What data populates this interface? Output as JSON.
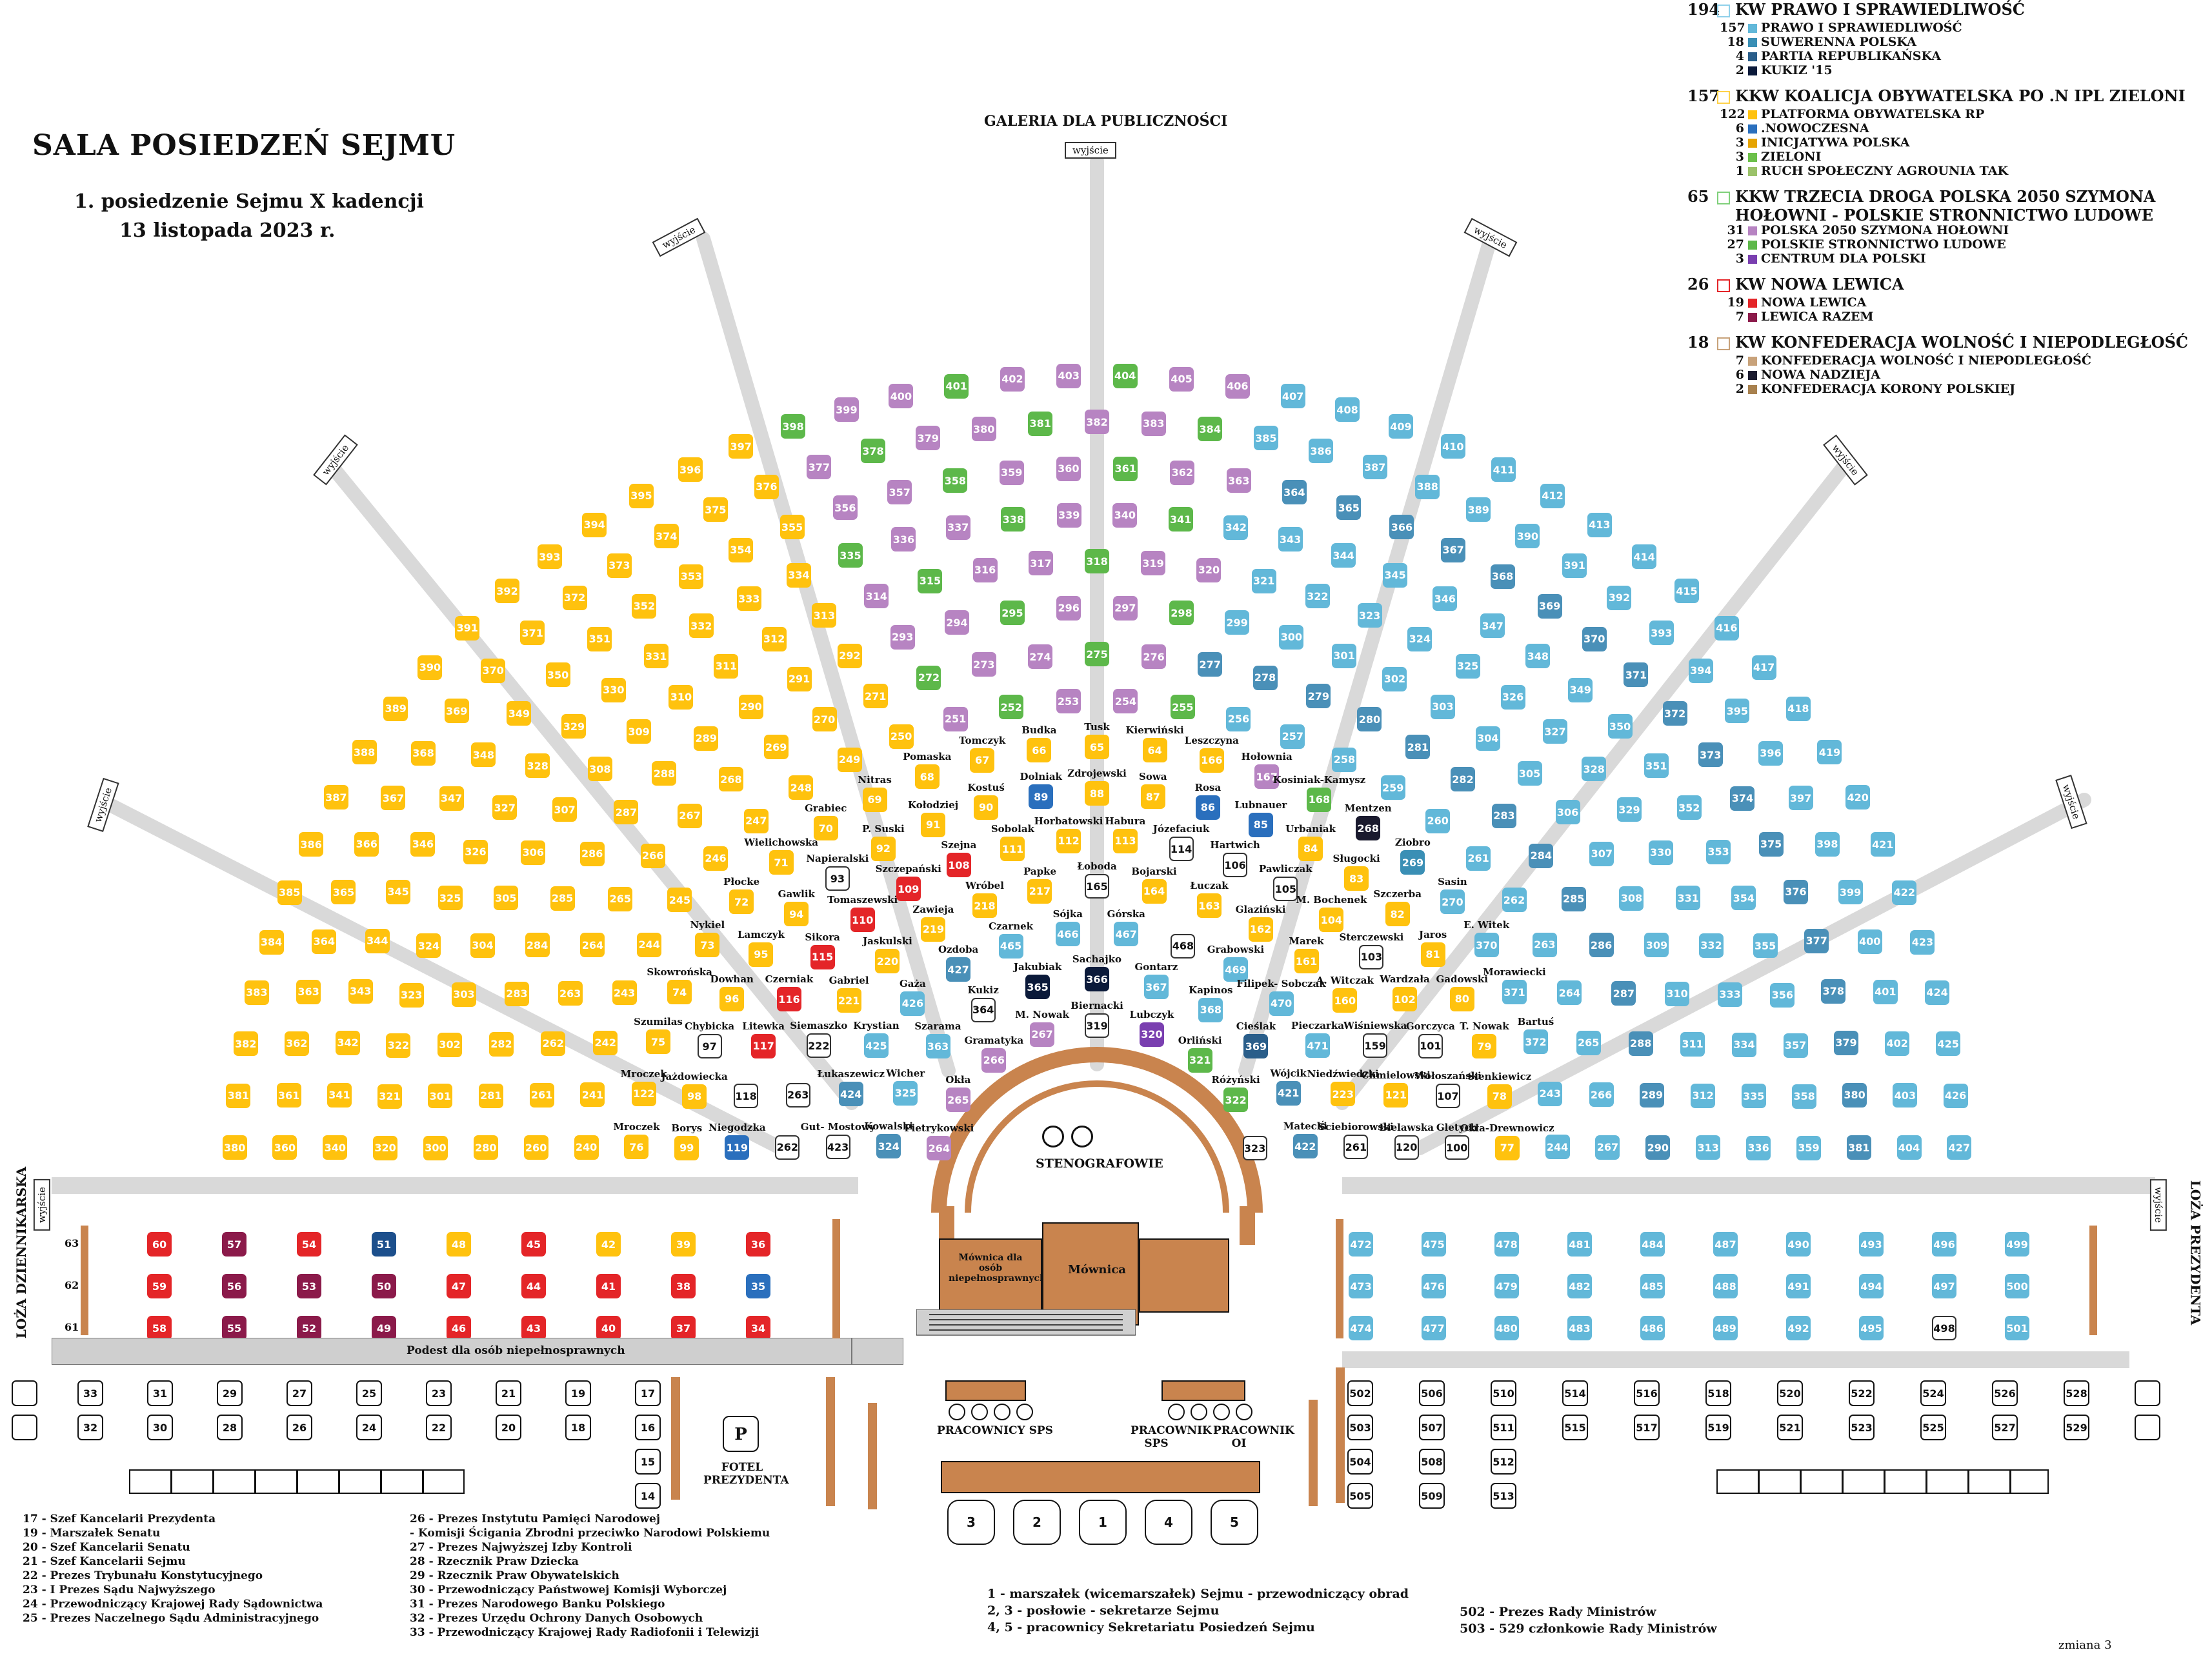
{
  "header": {
    "title": "SALA  POSIEDZEŃ SEJMU",
    "subtitle": "1. posiedzenie Sejmu X kadencji",
    "date": "13 listopada 2023 r.",
    "gallery": "GALERIA DLA PUBLICZNOŚCI",
    "exit": "wyjście",
    "stenographers": "STENOGRAFOWIE",
    "rostrum": "Mównica",
    "rostrum_disabled": "Mównica dla osób niepełnosprawnych",
    "podium": "Podest dla osób niepełnosprawnych",
    "loza_dz": "LOŻA DZIENNIKARSKA",
    "loza_prez": "LOŻA PREZYDENTA",
    "fotel": "FOTEL PREZYDENTA",
    "fotel_letter": "P",
    "pracownicy_sps": "PRACOWNICY  SPS",
    "pracownik_sps": "PRACOWNIK SPS",
    "pracownik_oi": "PRACOWNIK OI",
    "zmiana": "zmiana 3"
  },
  "colors": {
    "pis": "#ffc20e",
    "ko": "#f5b800",
    "td": "#6cc04a",
    "lewica": "#e42528",
    "konf": "#1c4f8c"
  },
  "legend": [
    {
      "total": "194",
      "color": "#8fd0ea",
      "label": "KW PRAWO I SPRAWIEDLIWOŚĆ",
      "items": [
        {
          "n": "157",
          "color": "#62b8d9",
          "label": "PRAWO I SPRAWIEDLIWOŚĆ"
        },
        {
          "n": "18",
          "color": "#3a8fb5",
          "label": "SUWERENNA POLSKA"
        },
        {
          "n": "4",
          "color": "#2a5e8a",
          "label": "PARTIA REPUBLIKAŃSKA"
        },
        {
          "n": "2",
          "color": "#0b1a3a",
          "label": "KUKIZ '15"
        }
      ]
    },
    {
      "total": "157",
      "color": "#ffd24a",
      "label": "KKW KOALICJA OBYWATELSKA PO .N IPL ZIELONI",
      "items": [
        {
          "n": "122",
          "color": "#ffc20e",
          "label": "PLATFORMA OBYWATELSKA RP"
        },
        {
          "n": "6",
          "color": "#2a6fbd",
          "label": ".NOWOCZESNA"
        },
        {
          "n": "3",
          "color": "#e6a400",
          "label": "INICJATYWA POLSKA"
        },
        {
          "n": "3",
          "color": "#6cc04a",
          "label": "ZIELONI"
        },
        {
          "n": "1",
          "color": "#9bc26a",
          "label": "RUCH SPOŁECZNY AGROUNIA TAK"
        }
      ]
    },
    {
      "total": "65",
      "color": "#7fd07a",
      "label": "KKW TRZECIA DROGA POLSKA 2050 SZYMONA HOŁOWNI - POLSKIE STRONNICTWO LUDOWE",
      "items": [
        {
          "n": "31",
          "color": "#b784c2",
          "label": "POLSKA 2050 SZYMONA HOŁOWNI"
        },
        {
          "n": "27",
          "color": "#5db84a",
          "label": "POLSKIE STRONNICTWO LUDOWE"
        },
        {
          "n": "3",
          "color": "#7a3fb0",
          "label": "CENTRUM DLA POLSKI"
        }
      ]
    },
    {
      "total": "26",
      "color": "#e42528",
      "label": "KW NOWA LEWICA",
      "items": [
        {
          "n": "19",
          "color": "#e42528",
          "label": "NOWA LEWICA"
        },
        {
          "n": "7",
          "color": "#8b1a4a",
          "label": "LEWICA RAZEM"
        }
      ]
    },
    {
      "total": "18",
      "color": "#c8a27a",
      "label": "KW KONFEDERACJA WOLNOŚĆ I NIEPODLEGŁOŚĆ",
      "items": [
        {
          "n": "7",
          "color": "#c8a27a",
          "label": "KONFEDERACJA WOLNOŚĆ I NIEPODLEGŁOŚĆ"
        },
        {
          "n": "6",
          "color": "#1a1a2e",
          "label": "NOWA NADZIEJA"
        },
        {
          "n": "2",
          "color": "#a8814e",
          "label": "KONFEDERACJA KORONY POLSKIEJ"
        }
      ]
    }
  ],
  "footnotes_left": [
    "17 - Szef Kancelarii Prezydenta",
    "19 - Marszałek Senatu",
    "20 - Szef Kancelarii Senatu",
    "21 - Szef Kancelarii Sejmu",
    "22 - Prezes Trybunału Konstytucyjnego",
    "23 - I Prezes Sądu Najwyższego",
    "24 - Przewodniczący Krajowej Rady Sądownictwa",
    "25 - Prezes Naczelnego Sądu Administracyjnego"
  ],
  "footnotes_mid": [
    "26 - Prezes Instytutu Pamięci Narodowej",
    "  - Komisji Ścigania Zbrodni przeciwko Narodowi Polskiemu",
    "27 - Prezes Najwyższej Izby Kontroli",
    "28 - Rzecznik Praw Dziecka",
    "29 - Rzecznik Praw Obywatelskich",
    "30 - Przewodniczący Państwowej Komisji Wyborczej",
    "31 - Prezes Narodowego Banku Polskiego",
    "32 - Prezes Urzędu Ochrony Danych Osobowych",
    "33 - Przewodniczący Krajowej Rady Radiofonii i Telewizji"
  ],
  "footnotes_right": [
    "1      - marszałek (wicemarszałek) Sejmu - przewodniczący obrad",
    "2, 3 - posłowie - sekretarze Sejmu",
    "4, 5 - pracownicy Sekretariatu Posiedzeń Sejmu"
  ],
  "footnotes_right2": [
    "502 - Prezes Rady Ministrów",
    "503 - 529 członkowie Rady Ministrów"
  ],
  "seats": [
    {
      "n": "264",
      "name": "Pietrykowski",
      "c": "#b784c2"
    },
    {
      "n": "265",
      "name": "Okła",
      "c": "#b784c2"
    },
    {
      "n": "266",
      "name": "Gramatyka",
      "c": "#b784c2"
    },
    {
      "n": "267",
      "name": "M. Nowak",
      "c": "#b784c2"
    },
    {
      "n": "319",
      "name": "Biernacki",
      "c": "white"
    },
    {
      "n": "320",
      "name": "Lubczyk",
      "c": "#7a3fb0"
    },
    {
      "n": "321",
      "name": "Orliński",
      "c": "#5db84a"
    },
    {
      "n": "322",
      "name": "Różyński",
      "c": "#5db84a"
    },
    {
      "n": "323",
      "name": "",
      "c": "white"
    },
    {
      "n": "324",
      "name": "Kowalski",
      "c": "#4a90b8"
    },
    {
      "n": "325",
      "name": "Wicher",
      "c": "#62b8d9"
    },
    {
      "n": "363",
      "name": "Szarama",
      "c": "#62b8d9"
    },
    {
      "n": "364",
      "name": "Kukiz",
      "c": "white"
    },
    {
      "n": "365",
      "name": "Jakubiak",
      "c": "#0b1a3a"
    },
    {
      "n": "366",
      "name": "Sachajko",
      "c": "#0b1a3a"
    },
    {
      "n": "367",
      "name": "Gontarz",
      "c": "#62b8d9"
    },
    {
      "n": "368",
      "name": "Kapinos",
      "c": "#62b8d9"
    },
    {
      "n": "369",
      "name": "Cieślak",
      "c": "#2a5e8a"
    },
    {
      "n": "421",
      "name": "Wójcik",
      "c": "#4a90b8"
    },
    {
      "n": "422",
      "name": "Matecki",
      "c": "#4a90b8"
    },
    {
      "n": "423",
      "name": "Gut- Mostowy",
      "c": "white"
    },
    {
      "n": "424",
      "name": "Łukaszewicz",
      "c": "#4a90b8"
    },
    {
      "n": "425",
      "name": "Krystian",
      "c": "#62b8d9"
    },
    {
      "n": "426",
      "name": "Gaża",
      "c": "#62b8d9"
    },
    {
      "n": "427",
      "name": "Ozdoba",
      "c": "#4a90b8"
    },
    {
      "n": "465",
      "name": "Czarnek",
      "c": "#62b8d9"
    },
    {
      "n": "466",
      "name": "Sójka",
      "c": "#62b8d9"
    },
    {
      "n": "467",
      "name": "Górska",
      "c": "#62b8d9"
    },
    {
      "n": "468",
      "name": "",
      "c": "white"
    },
    {
      "n": "469",
      "name": "Grabowski",
      "c": "#62b8d9"
    },
    {
      "n": "470",
      "name": "Filipek- Sobczak",
      "c": "#62b8d9"
    },
    {
      "n": "471",
      "name": "Pieczarka",
      "c": "#62b8d9"
    },
    {
      "n": "223",
      "name": "Niedźwiedzki",
      "c": "#ffc20e"
    },
    {
      "n": "261",
      "name": "Ściebiorowski",
      "c": "white"
    },
    {
      "n": "262",
      "name": "",
      "c": "white"
    },
    {
      "n": "263",
      "name": "",
      "c": "white"
    },
    {
      "n": "222",
      "name": "Siemaszko",
      "c": "white"
    },
    {
      "n": "221",
      "name": "Gabriel",
      "c": "#ffc20e"
    },
    {
      "n": "220",
      "name": "Jaskulski",
      "c": "#ffc20e"
    },
    {
      "n": "219",
      "name": "Zawieja",
      "c": "#ffc20e"
    },
    {
      "n": "218",
      "name": "Wróbel",
      "c": "#ffc20e"
    },
    {
      "n": "217",
      "name": "Papke",
      "c": "#ffc20e"
    },
    {
      "n": "165",
      "name": "Łoboda",
      "c": "white"
    },
    {
      "n": "164",
      "name": "Bojarski",
      "c": "#ffc20e"
    },
    {
      "n": "163",
      "name": "Łuczak",
      "c": "#ffc20e"
    },
    {
      "n": "162",
      "name": "Glaziński",
      "c": "#ffc20e"
    },
    {
      "n": "161",
      "name": "Marek",
      "c": "#ffc20e"
    },
    {
      "n": "160",
      "name": "A. Witczak",
      "c": "#ffc20e"
    },
    {
      "n": "159",
      "name": "Wiśniewska",
      "c": "white"
    },
    {
      "n": "121",
      "name": "Chmielowski",
      "c": "#ffc20e"
    },
    {
      "n": "120",
      "name": "Bielawska",
      "c": "white"
    },
    {
      "n": "119",
      "name": "Niegodzka",
      "c": "#2a6fbd"
    },
    {
      "n": "118",
      "name": "",
      "c": "white"
    },
    {
      "n": "117",
      "name": "Litewka",
      "c": "#e42528"
    },
    {
      "n": "116",
      "name": "Czerniak",
      "c": "#e42528"
    },
    {
      "n": "115",
      "name": "Sikora",
      "c": "#e42528"
    },
    {
      "n": "110",
      "name": "Tomaszewski",
      "c": "#e42528"
    },
    {
      "n": "109",
      "name": "Szczepański",
      "c": "#e42528"
    },
    {
      "n": "108",
      "name": "Szejna",
      "c": "#e42528"
    },
    {
      "n": "111",
      "name": "Sobolak",
      "c": "#ffc20e"
    },
    {
      "n": "112",
      "name": "Horbatowski",
      "c": "#ffc20e"
    },
    {
      "n": "113",
      "name": "Habura",
      "c": "#ffc20e"
    },
    {
      "n": "114",
      "name": "Józefaciuk",
      "c": "white"
    },
    {
      "n": "106",
      "name": "Hartwich",
      "c": "white"
    },
    {
      "n": "105",
      "name": "Pawliczak",
      "c": "white"
    },
    {
      "n": "104",
      "name": "M. Bochenek",
      "c": "#ffc20e"
    },
    {
      "n": "103",
      "name": "Sterczewski",
      "c": "white"
    },
    {
      "n": "102",
      "name": "Wardzała",
      "c": "#ffc20e"
    },
    {
      "n": "101",
      "name": "Gorczyca",
      "c": "white"
    },
    {
      "n": "107",
      "name": "Wołoszański",
      "c": "white"
    },
    {
      "n": "100",
      "name": "Gletych",
      "c": "white"
    },
    {
      "n": "99",
      "name": "Borys",
      "c": "#ffc20e"
    },
    {
      "n": "98",
      "name": "Jażdowiecka",
      "c": "#ffc20e"
    },
    {
      "n": "97",
      "name": "Chybicka",
      "c": "white"
    },
    {
      "n": "96",
      "name": "Dowhan",
      "c": "#ffc20e"
    },
    {
      "n": "95",
      "name": "Lamczyk",
      "c": "#ffc20e"
    },
    {
      "n": "94",
      "name": "Gawlik",
      "c": "#ffc20e"
    },
    {
      "n": "93",
      "name": "Napieralski",
      "c": "white"
    },
    {
      "n": "92",
      "name": "P. Suski",
      "c": "#ffc20e"
    },
    {
      "n": "91",
      "name": "Kołodziej",
      "c": "#ffc20e"
    },
    {
      "n": "90",
      "name": "Kostuś",
      "c": "#ffc20e"
    },
    {
      "n": "89",
      "name": "Dolniak",
      "c": "#2a6fbd"
    },
    {
      "n": "88",
      "name": "Zdrojewski",
      "c": "#ffc20e"
    },
    {
      "n": "87",
      "name": "Sowa",
      "c": "#ffc20e"
    },
    {
      "n": "86",
      "name": "Rosa",
      "c": "#2a6fbd"
    },
    {
      "n": "85",
      "name": "Lubnauer",
      "c": "#2a6fbd"
    },
    {
      "n": "84",
      "name": "Urbaniak",
      "c": "#ffc20e"
    },
    {
      "n": "83",
      "name": "Sługocki",
      "c": "#ffc20e"
    },
    {
      "n": "82",
      "name": "Szczerba",
      "c": "#ffc20e"
    },
    {
      "n": "81",
      "name": "Jaros",
      "c": "#ffc20e"
    },
    {
      "n": "80",
      "name": "Gadowski",
      "c": "#ffc20e"
    },
    {
      "n": "79",
      "name": "T. Nowak",
      "c": "#ffc20e"
    },
    {
      "n": "78",
      "name": "Sienkiewicz",
      "c": "#ffc20e"
    },
    {
      "n": "77",
      "name": "Okła-Drewnowicz",
      "c": "#ffc20e"
    },
    {
      "n": "76",
      "name": "Mroczek",
      "c": "#ffc20e"
    },
    {
      "n": "122",
      "name": "Mroczek",
      "c": "#ffc20e"
    },
    {
      "n": "75",
      "name": "Szumilas",
      "c": "#ffc20e"
    },
    {
      "n": "74",
      "name": "Skowrońska",
      "c": "#ffc20e"
    },
    {
      "n": "73",
      "name": "Nykiel",
      "c": "#ffc20e"
    },
    {
      "n": "72",
      "name": "Płocke",
      "c": "#ffc20e"
    },
    {
      "n": "71",
      "name": "Wielichowska",
      "c": "#ffc20e"
    },
    {
      "n": "70",
      "name": "Grabiec",
      "c": "#ffc20e"
    },
    {
      "n": "69",
      "name": "Nitras",
      "c": "#ffc20e"
    },
    {
      "n": "68",
      "name": "Pomaska",
      "c": "#ffc20e"
    },
    {
      "n": "67",
      "name": "Tomczyk",
      "c": "#ffc20e"
    },
    {
      "n": "66",
      "name": "Budka",
      "c": "#ffc20e"
    },
    {
      "n": "65",
      "name": "Tusk",
      "c": "#ffc20e"
    },
    {
      "n": "64",
      "name": "Kierwiński",
      "c": "#ffc20e"
    },
    {
      "n": "166",
      "name": "Leszczyna",
      "c": "#ffc20e"
    },
    {
      "n": "167",
      "name": "Hołownia",
      "c": "#b784c2"
    },
    {
      "n": "168",
      "name": "Kosiniak-Kamysz",
      "c": "#5db84a"
    },
    {
      "n": "268",
      "name": "Mentzen",
      "c": "#1a1a2e"
    },
    {
      "n": "269",
      "name": "Ziobro",
      "c": "#3a8fb5"
    },
    {
      "n": "270",
      "name": "Sasin",
      "c": "#62b8d9"
    },
    {
      "n": "370",
      "name": "E. Witek",
      "c": "#62b8d9"
    },
    {
      "n": "371",
      "name": "Morawiecki",
      "c": "#62b8d9"
    },
    {
      "n": "372",
      "name": "Bartuś",
      "c": "#62b8d9"
    }
  ]
}
